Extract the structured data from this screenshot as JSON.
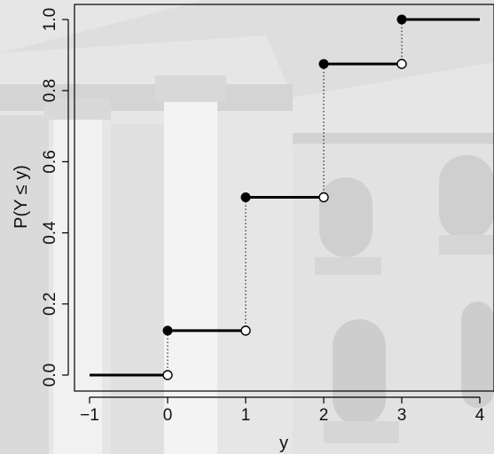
{
  "chart_data": {
    "type": "step",
    "title": "",
    "xlabel": "y",
    "ylabel": "P(Y ≤ y)",
    "xlim": [
      -1,
      4
    ],
    "ylim": [
      0,
      1
    ],
    "x_ticks": [
      -1,
      0,
      1,
      2,
      3,
      4
    ],
    "x_tick_labels": [
      "−1",
      "0",
      "1",
      "2",
      "3",
      "4"
    ],
    "y_ticks": [
      0,
      0.2,
      0.4,
      0.6,
      0.8,
      1.0
    ],
    "y_tick_labels": [
      "0.0",
      "0.2",
      "0.4",
      "0.6",
      "0.8",
      "1.0"
    ],
    "segments": [
      {
        "x_start": -1,
        "x_end": 0,
        "y": 0.0,
        "left_closed": false,
        "right_open": true
      },
      {
        "x_start": 0,
        "x_end": 1,
        "y": 0.125,
        "left_closed": true,
        "right_open": true
      },
      {
        "x_start": 1,
        "x_end": 2,
        "y": 0.5,
        "left_closed": true,
        "right_open": true
      },
      {
        "x_start": 2,
        "x_end": 3,
        "y": 0.875,
        "left_closed": true,
        "right_open": true
      },
      {
        "x_start": 3,
        "x_end": 4,
        "y": 1.0,
        "left_closed": true,
        "right_open": false
      }
    ],
    "jumps": [
      {
        "x": 0,
        "from": 0.0,
        "to": 0.125
      },
      {
        "x": 1,
        "from": 0.125,
        "to": 0.5
      },
      {
        "x": 2,
        "from": 0.5,
        "to": 0.875
      },
      {
        "x": 3,
        "from": 0.875,
        "to": 1.0
      }
    ],
    "colors": {
      "line": "#000000",
      "open_fill": "#ffffff"
    }
  }
}
